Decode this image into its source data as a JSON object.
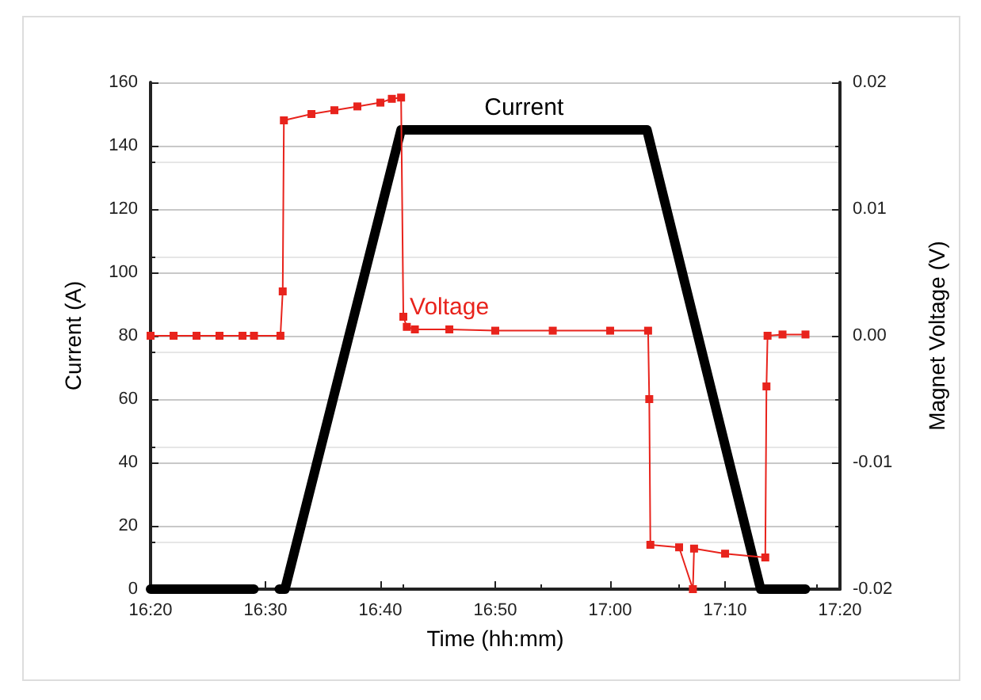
{
  "chart_data": {
    "type": "line",
    "xlabel": "Time (hh:mm)",
    "ylabel": "Current (A)",
    "y2label": "Magnet Voltage (V)",
    "xlim": [
      16.3333,
      17.3333
    ],
    "xticks": [
      {
        "value": 16.3333,
        "label": "16:20"
      },
      {
        "value": 16.5,
        "label": "16:30"
      },
      {
        "value": 16.6667,
        "label": "16:40"
      },
      {
        "value": 16.8333,
        "label": "16:50"
      },
      {
        "value": 17,
        "label": "17:00"
      },
      {
        "value": 17.1667,
        "label": "17:10"
      },
      {
        "value": 17.3333,
        "label": "17:20"
      }
    ],
    "ylim": [
      0,
      160
    ],
    "yticks": [
      0,
      20,
      40,
      60,
      80,
      100,
      120,
      140,
      160
    ],
    "y2lim": [
      -0.02,
      0.02
    ],
    "y2ticks": [
      -0.02,
      -0.01,
      {
        "value": 0,
        "label": "0.00"
      },
      0.01,
      0.02
    ],
    "grid": "y",
    "legend": false,
    "series": [
      {
        "name": "Current",
        "color": "#000000",
        "marker": "none",
        "line_style": "solid",
        "x": [
          16.3333,
          16.4833,
          16.5,
          16.52,
          16.5283,
          16.6967,
          17.0533,
          17.2183,
          17.2833
        ],
        "values": [
          0,
          0,
          null,
          0,
          0,
          145,
          145,
          0,
          0
        ]
      },
      {
        "name": "Voltage",
        "color": "#e8231c",
        "axis": "y2",
        "marker": "square",
        "line_style": "solid",
        "x": [
          16.3333,
          16.3667,
          16.4,
          16.4333,
          16.4667,
          16.4833,
          16.5217,
          16.525,
          16.5267,
          16.5667,
          16.6,
          16.6333,
          16.6667,
          16.6833,
          16.6967,
          16.7,
          16.705,
          16.7167,
          16.7667,
          16.8333,
          16.9167,
          17,
          17.055,
          17.0567,
          17.0583,
          17.1,
          17.12,
          17.1217,
          17.1667,
          17.225,
          17.2267,
          17.2283,
          17.25,
          17.2833
        ],
        "values": [
          0,
          0,
          0,
          0,
          0,
          0,
          0,
          0.0035,
          0.017,
          0.0175,
          0.0178,
          0.0181,
          0.0184,
          0.0187,
          0.0188,
          0.0015,
          0.0007,
          0.0005,
          0.0005,
          0.0004,
          0.0004,
          0.0004,
          0.0004,
          -0.005,
          -0.0165,
          -0.0167,
          -0.02,
          -0.0168,
          -0.0172,
          -0.0175,
          -0.004,
          0,
          0.0001,
          0.0001
        ]
      }
    ]
  }
}
